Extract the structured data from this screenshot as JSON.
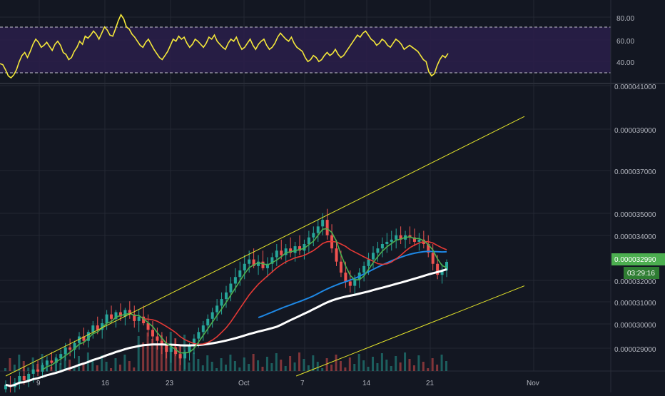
{
  "colors": {
    "background": "#131722",
    "grid": "#232733",
    "rsi_line": "#f5e83a",
    "rsi_band": "#2a1f4a",
    "bull": "#26a69a",
    "bear": "#ef5350",
    "ema_green": "#4caf50",
    "ema_red": "#e53935",
    "ma_blue": "#1e88e5",
    "ma_white": "#ffffff",
    "trendline": "#e6e62a",
    "price_badge": "#4caf50",
    "timer_badge": "#2e7d32"
  },
  "rsi_axis": {
    "labels": [
      "80.00",
      "60.00",
      "40.00"
    ],
    "values": [
      80,
      60,
      40
    ],
    "overbought": 70,
    "oversold": 30,
    "ylim": [
      20,
      95
    ]
  },
  "price_axis": {
    "labels": [
      "0.000041000",
      "0.000039000",
      "0.000037000",
      "0.000035000",
      "0.000034000",
      "0.000032000",
      "0.000031000",
      "0.000030000",
      "0.000029000"
    ],
    "values": [
      41.0,
      39.0,
      37.0,
      35.0,
      34.0,
      32.0,
      31.0,
      30.0,
      29.0
    ]
  },
  "current_price": {
    "label": "0.000032990",
    "value": 32.99
  },
  "countdown": {
    "label": "03:29:16"
  },
  "x_axis": {
    "labels": [
      "9",
      "16",
      "23",
      "Oct",
      "7",
      "14",
      "21",
      "Nov"
    ]
  },
  "chart_data": [
    {
      "type": "line",
      "xlabel": "",
      "ylabel": "",
      "ylim": [
        20,
        95
      ],
      "series": [
        {
          "values": [
            36,
            35,
            30,
            24,
            22,
            25,
            30,
            38,
            44,
            47,
            42,
            48,
            55,
            60,
            57,
            52,
            54,
            57,
            53,
            49,
            55,
            58,
            54,
            47,
            45,
            40,
            42,
            48,
            52,
            58,
            55,
            63,
            61,
            64,
            68,
            65,
            60,
            66,
            72,
            69,
            64,
            63,
            70,
            78,
            84,
            80,
            72,
            70,
            65,
            62,
            58,
            54,
            52,
            57,
            60,
            55,
            50,
            46,
            42,
            40,
            44,
            48,
            54,
            60,
            58,
            63,
            60,
            62,
            56,
            52,
            55,
            60,
            58,
            55,
            52,
            56,
            62,
            60,
            64,
            58,
            55,
            52,
            50,
            56,
            60,
            58,
            62,
            55,
            50,
            52,
            56,
            60,
            54,
            50,
            55,
            58,
            60,
            54,
            50,
            52,
            56,
            62,
            66,
            63,
            60,
            58,
            62,
            56,
            52,
            50,
            48,
            42,
            38,
            40,
            44,
            42,
            38,
            40,
            44,
            47,
            44,
            46,
            50,
            45,
            42,
            44,
            48,
            52,
            56,
            60,
            64,
            62,
            66,
            68,
            64,
            60,
            58,
            54,
            56,
            60,
            58,
            54,
            52,
            56,
            60,
            58,
            55,
            50,
            52,
            54,
            52,
            50,
            48,
            44,
            40,
            38,
            28,
            24,
            26,
            34,
            40,
            44,
            42,
            46
          ]
        }
      ]
    },
    {
      "type": "candlestick",
      "xlabel": "",
      "ylabel": "",
      "ylim": [
        28.0,
        41.5
      ],
      "candles_ohlc": [
        [
          27.2,
          27.6,
          26.8,
          27.4
        ],
        [
          27.4,
          27.8,
          27.0,
          27.3
        ],
        [
          27.3,
          27.7,
          26.9,
          27.5
        ],
        [
          27.5,
          28.0,
          27.2,
          27.8
        ],
        [
          27.8,
          28.2,
          27.4,
          27.6
        ],
        [
          27.6,
          28.0,
          27.3,
          27.9
        ],
        [
          27.9,
          28.3,
          27.5,
          28.1
        ],
        [
          28.1,
          28.5,
          27.8,
          28.0
        ],
        [
          28.0,
          28.4,
          27.7,
          28.3
        ],
        [
          28.3,
          28.7,
          28.0,
          28.5
        ],
        [
          28.5,
          28.9,
          28.1,
          28.4
        ],
        [
          28.4,
          28.8,
          28.0,
          28.6
        ],
        [
          28.6,
          29.0,
          28.3,
          28.8
        ],
        [
          28.8,
          29.3,
          28.5,
          29.1
        ],
        [
          29.1,
          29.5,
          28.7,
          29.0
        ],
        [
          29.0,
          29.4,
          28.6,
          29.3
        ],
        [
          29.3,
          29.8,
          29.0,
          29.6
        ],
        [
          29.6,
          30.0,
          29.2,
          29.4
        ],
        [
          29.4,
          29.9,
          29.1,
          29.8
        ],
        [
          29.8,
          30.3,
          29.5,
          30.1
        ],
        [
          30.1,
          30.5,
          29.7,
          29.9
        ],
        [
          29.9,
          30.4,
          29.5,
          30.2
        ],
        [
          30.2,
          30.8,
          29.9,
          30.6
        ],
        [
          30.6,
          31.0,
          30.2,
          30.4
        ],
        [
          30.4,
          30.8,
          30.0,
          30.7
        ],
        [
          30.7,
          31.1,
          30.3,
          30.5
        ],
        [
          30.5,
          30.9,
          30.1,
          30.8
        ],
        [
          30.8,
          31.2,
          30.4,
          30.6
        ],
        [
          30.6,
          31.0,
          30.0,
          30.3
        ],
        [
          30.3,
          30.8,
          29.8,
          30.5
        ],
        [
          30.5,
          31.0,
          30.1,
          30.2
        ],
        [
          30.2,
          30.6,
          29.6,
          29.9
        ],
        [
          29.9,
          30.3,
          29.3,
          29.6
        ],
        [
          29.6,
          30.0,
          29.0,
          29.4
        ],
        [
          29.4,
          29.8,
          28.8,
          29.2
        ],
        [
          29.2,
          29.6,
          28.6,
          28.9
        ],
        [
          28.9,
          29.3,
          28.4,
          29.1
        ],
        [
          29.1,
          29.5,
          28.7,
          28.8
        ],
        [
          28.8,
          29.2,
          28.3,
          28.6
        ],
        [
          28.6,
          29.0,
          28.1,
          28.9
        ],
        [
          28.9,
          29.3,
          28.5,
          29.2
        ],
        [
          29.2,
          29.7,
          28.8,
          29.5
        ],
        [
          29.5,
          30.0,
          29.1,
          29.8
        ],
        [
          29.8,
          30.3,
          29.4,
          30.1
        ],
        [
          30.1,
          30.6,
          29.7,
          30.4
        ],
        [
          30.4,
          30.9,
          30.0,
          30.7
        ],
        [
          30.7,
          31.3,
          30.3,
          31.0
        ],
        [
          31.0,
          31.6,
          30.6,
          31.3
        ],
        [
          31.3,
          31.9,
          30.9,
          31.6
        ],
        [
          31.6,
          32.3,
          31.2,
          32.0
        ],
        [
          32.0,
          32.7,
          31.6,
          32.3
        ],
        [
          32.3,
          33.0,
          31.9,
          32.6
        ],
        [
          32.6,
          33.3,
          32.2,
          32.9
        ],
        [
          32.9,
          33.5,
          32.5,
          33.1
        ],
        [
          33.1,
          33.6,
          32.7,
          32.8
        ],
        [
          32.8,
          33.3,
          32.4,
          33.0
        ],
        [
          33.0,
          33.5,
          32.6,
          32.7
        ],
        [
          32.7,
          33.2,
          32.3,
          32.9
        ],
        [
          32.9,
          33.4,
          32.5,
          33.2
        ],
        [
          33.2,
          33.8,
          32.8,
          33.5
        ],
        [
          33.5,
          34.0,
          33.1,
          33.3
        ],
        [
          33.3,
          33.8,
          32.9,
          33.6
        ],
        [
          33.6,
          34.1,
          33.2,
          33.4
        ],
        [
          33.4,
          33.9,
          33.0,
          33.7
        ],
        [
          33.7,
          34.2,
          33.3,
          33.5
        ],
        [
          33.5,
          34.0,
          33.1,
          33.8
        ],
        [
          33.8,
          34.4,
          33.4,
          34.1
        ],
        [
          34.1,
          34.6,
          33.7,
          34.3
        ],
        [
          34.3,
          34.9,
          33.9,
          34.6
        ],
        [
          34.6,
          35.2,
          34.2,
          34.9
        ],
        [
          34.9,
          35.4,
          34.0,
          34.2
        ],
        [
          34.2,
          34.7,
          33.4,
          33.6
        ],
        [
          33.6,
          34.0,
          32.8,
          33.0
        ],
        [
          33.0,
          33.5,
          32.3,
          32.5
        ],
        [
          32.5,
          33.0,
          31.8,
          32.1
        ],
        [
          32.1,
          32.6,
          31.6,
          31.9
        ],
        [
          31.9,
          32.4,
          31.5,
          32.2
        ],
        [
          32.2,
          32.7,
          31.8,
          32.5
        ],
        [
          32.5,
          33.0,
          32.1,
          32.8
        ],
        [
          32.8,
          33.4,
          32.4,
          33.1
        ],
        [
          33.1,
          33.7,
          32.7,
          33.4
        ],
        [
          33.4,
          33.9,
          33.0,
          33.6
        ],
        [
          33.6,
          34.1,
          33.2,
          33.8
        ],
        [
          33.8,
          34.3,
          33.4,
          33.9
        ],
        [
          33.9,
          34.4,
          33.5,
          34.0
        ],
        [
          34.0,
          34.5,
          33.6,
          34.2
        ],
        [
          34.2,
          34.6,
          33.8,
          34.0
        ],
        [
          34.0,
          34.4,
          33.6,
          34.2
        ],
        [
          34.2,
          34.6,
          33.8,
          34.1
        ],
        [
          34.1,
          34.5,
          33.7,
          33.9
        ],
        [
          33.9,
          34.3,
          33.5,
          34.0
        ],
        [
          34.0,
          34.4,
          33.6,
          33.8
        ],
        [
          33.8,
          34.2,
          33.2,
          33.4
        ],
        [
          33.4,
          33.8,
          32.6,
          32.9
        ],
        [
          32.9,
          33.3,
          32.2,
          32.4
        ],
        [
          32.4,
          32.9,
          32.0,
          32.6
        ],
        [
          32.6,
          33.1,
          32.3,
          32.99
        ]
      ],
      "series": [
        {
          "values": []
        }
      ],
      "trendlines": [
        {
          "from": [
            0,
            27.8
          ],
          "to": [
            1.0,
            39.6
          ]
        },
        {
          "from": [
            0.56,
            27.8
          ],
          "to": [
            1.0,
            31.9
          ]
        }
      ]
    }
  ]
}
